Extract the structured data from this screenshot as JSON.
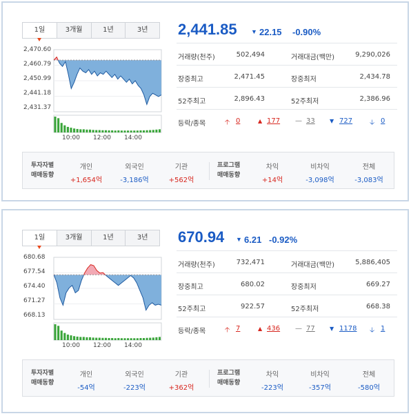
{
  "panels": [
    {
      "tabs": [
        "1일",
        "3개월",
        "1년",
        "3년"
      ],
      "price": "2,441.85",
      "change_arrow": "▼",
      "change": "22.15",
      "change_pct": "-0.90%",
      "yticks": [
        "2,470.60",
        "2,460.79",
        "2,450.99",
        "2,441.18",
        "2,431.37"
      ],
      "xticks": [
        "10:00",
        "12:00",
        "14:00"
      ],
      "stats": {
        "vol_label": "거래량(천주)",
        "vol": "502,494",
        "amt_label": "거래대금(백만)",
        "amt": "9,290,026",
        "high_label": "장중최고",
        "high": "2,471.45",
        "low_label": "장중최저",
        "low": "2,434.78",
        "h52_label": "52주최고",
        "h52": "2,896.43",
        "l52_label": "52주최저",
        "l52": "2,386.96"
      },
      "breadth": {
        "label": "등락/종목",
        "up_limit": "0",
        "up": "177",
        "flat": "33",
        "down": "727",
        "down_limit": "0"
      },
      "investors": {
        "title1": "투자자별",
        "title2": "매매동향",
        "personal_label": "개인",
        "personal": "+1,654억",
        "foreign_label": "외국인",
        "foreign": "-3,186억",
        "inst_label": "기관",
        "inst": "+562억",
        "prog1": "프로그램",
        "prog2": "매매동향",
        "arb_label": "차익",
        "arb": "+14억",
        "nonarb_label": "비차익",
        "nonarb": "-3,098억",
        "total_label": "전체",
        "total": "-3,083억"
      },
      "chart_data": {
        "type": "area",
        "ylim": [
          2431.37,
          2470.6
        ],
        "reference": 2464.0,
        "values": [
          2464,
          2466,
          2462,
          2460,
          2463,
          2455,
          2446,
          2450,
          2455,
          2459,
          2457,
          2456,
          2458,
          2455,
          2457,
          2454,
          2456,
          2455,
          2457,
          2455,
          2453,
          2455,
          2452,
          2454,
          2452,
          2450,
          2452,
          2449,
          2451,
          2448,
          2446,
          2442,
          2436,
          2441,
          2443,
          2442,
          2441,
          2442
        ]
      }
    },
    {
      "tabs": [
        "1일",
        "3개월",
        "1년",
        "3년"
      ],
      "price": "670.94",
      "change_arrow": "▼",
      "change": "6.21",
      "change_pct": "-0.92%",
      "yticks": [
        "680.68",
        "677.54",
        "674.40",
        "671.27",
        "668.13"
      ],
      "xticks": [
        "10:00",
        "12:00",
        "14:00"
      ],
      "stats": {
        "vol_label": "거래량(천주)",
        "vol": "732,471",
        "amt_label": "거래대금(백만)",
        "amt": "5,886,405",
        "high_label": "장중최고",
        "high": "680.02",
        "low_label": "장중최저",
        "low": "669.27",
        "h52_label": "52주최고",
        "h52": "922.57",
        "l52_label": "52주최저",
        "l52": "668.38"
      },
      "breadth": {
        "label": "등락/종목",
        "up_limit": "7",
        "up": "436",
        "flat": "77",
        "down": "1178",
        "down_limit": "1"
      },
      "investors": {
        "title1": "투자자별",
        "title2": "매매동향",
        "personal_label": "개인",
        "personal": "-54억",
        "foreign_label": "외국인",
        "foreign": "-223억",
        "inst_label": "기관",
        "inst": "+362억",
        "prog1": "프로그램",
        "prog2": "매매동향",
        "arb_label": "차익",
        "arb": "-223억",
        "nonarb_label": "비차익",
        "nonarb": "-357억",
        "total_label": "전체",
        "total": "-580억"
      },
      "chart_data": {
        "type": "area",
        "ylim": [
          668.13,
          680.68
        ],
        "reference": 677.15,
        "values": [
          677.2,
          675.5,
          672.5,
          671.0,
          673.5,
          674.5,
          675.0,
          673.5,
          674.0,
          676.0,
          677.5,
          678.5,
          679.2,
          679.0,
          678.0,
          677.5,
          677.6,
          677.0,
          676.5,
          676.0,
          675.5,
          675.0,
          675.5,
          676.0,
          676.5,
          677.0,
          676.5,
          675.5,
          674.0,
          672.5,
          670.0,
          671.0,
          671.5,
          671.0,
          671.2,
          671.0
        ]
      }
    }
  ]
}
